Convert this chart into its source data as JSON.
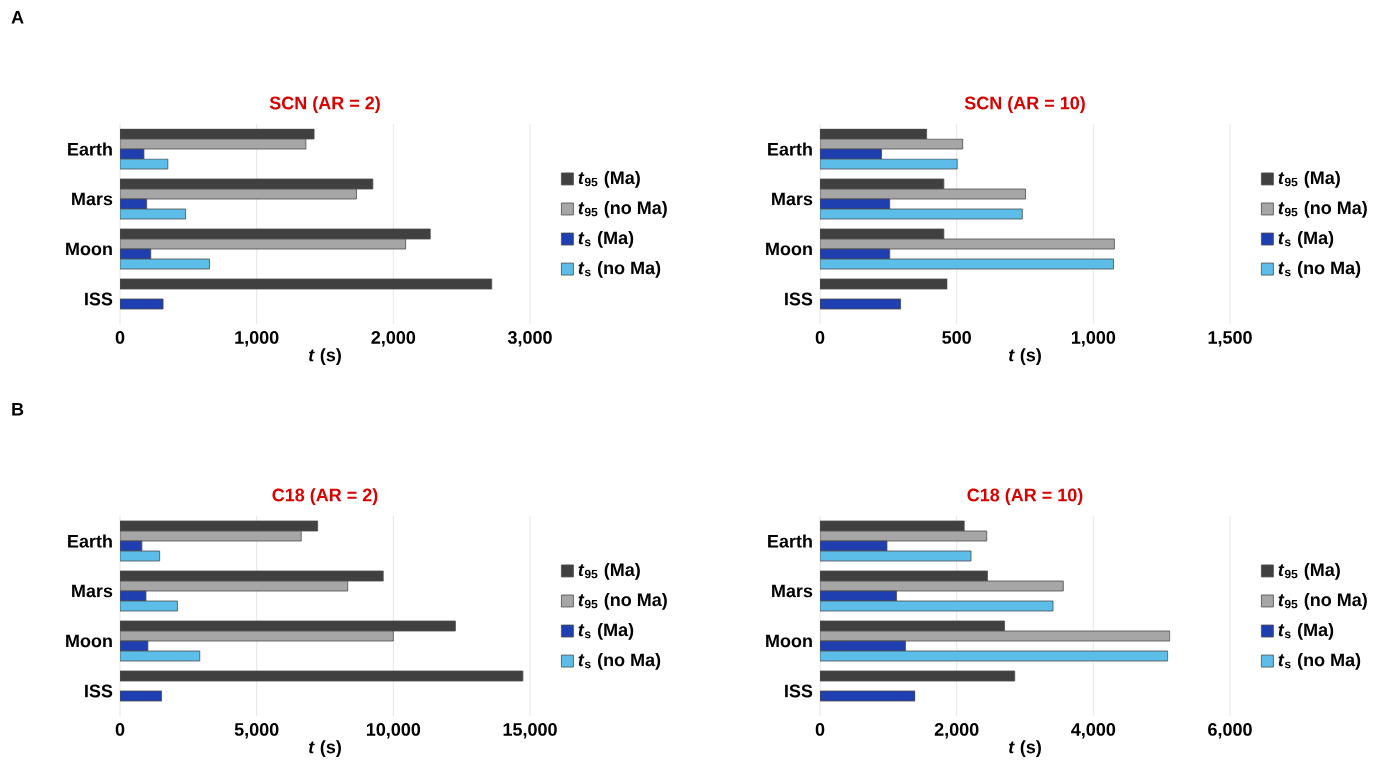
{
  "chart_data": [
    {
      "type": "bar",
      "orientation": "horizontal",
      "title": "SCN (AR = 2)",
      "xlabel": "*t* (s)",
      "annotations": [
        "A"
      ],
      "categories": [
        "Earth",
        "Mars",
        "Moon",
        "ISS"
      ],
      "xlim": [
        0,
        3000
      ],
      "xticks": [
        0,
        {
          "value": 1000,
          "label": "1,000"
        },
        {
          "value": 2000,
          "label": "2,000"
        },
        {
          "value": 3000,
          "label": "3,000"
        }
      ],
      "grid": "x",
      "legend": "right",
      "series": [
        {
          "name": "*t*$_{95}$ (Ma)",
          "color": "#404040",
          "values": [
            1420,
            1850,
            2270,
            2720
          ]
        },
        {
          "name": "*t*$_{95}$ (no Ma)",
          "color": "#a6a6a6",
          "values": [
            1360,
            1730,
            2090,
            null
          ]
        },
        {
          "name": "*t*$_{s}$ (Ma)",
          "color": "#1f3fb0",
          "values": [
            175,
            195,
            225,
            315
          ]
        },
        {
          "name": "*t*$_{s}$ (no Ma)",
          "color": "#5bbde8",
          "values": [
            350,
            480,
            655,
            null
          ]
        }
      ]
    },
    {
      "type": "bar",
      "orientation": "horizontal",
      "title": "SCN (AR = 10)",
      "xlabel": "*t* (s)",
      "categories": [
        "Earth",
        "Mars",
        "Moon",
        "ISS"
      ],
      "xlim": [
        0,
        1500
      ],
      "xticks": [
        0,
        500,
        {
          "value": 1000,
          "label": "1,000"
        },
        {
          "value": 1500,
          "label": "1,500"
        }
      ],
      "grid": "x",
      "legend": "right",
      "series": [
        {
          "name": "*t*$_{95}$ (Ma)",
          "color": "#404040",
          "values": [
            390,
            453,
            453,
            465
          ]
        },
        {
          "name": "*t*$_{95}$ (no Ma)",
          "color": "#a6a6a6",
          "values": [
            522,
            752,
            1077,
            null
          ]
        },
        {
          "name": "*t*$_{s}$ (Ma)",
          "color": "#1f3fb0",
          "values": [
            225,
            255,
            255,
            295
          ]
        },
        {
          "name": "*t*$_{s}$ (no Ma)",
          "color": "#5bbde8",
          "values": [
            502,
            740,
            1074,
            null
          ]
        }
      ]
    },
    {
      "type": "bar",
      "orientation": "horizontal",
      "title": "C18 (AR = 2)",
      "xlabel": "*t* (s)",
      "annotations": [
        "B"
      ],
      "categories": [
        "Earth",
        "Mars",
        "Moon",
        "ISS"
      ],
      "xlim": [
        0,
        15000
      ],
      "xticks": [
        0,
        {
          "value": 5000,
          "label": "5,000"
        },
        {
          "value": 10000,
          "label": "10,000"
        },
        {
          "value": 15000,
          "label": "15,000"
        }
      ],
      "grid": "x",
      "legend": "right",
      "series": [
        {
          "name": "*t*$_{95}$ (Ma)",
          "color": "#404040",
          "values": [
            7230,
            9630,
            12270,
            14740
          ]
        },
        {
          "name": "*t*$_{95}$ (no Ma)",
          "color": "#a6a6a6",
          "values": [
            6630,
            8330,
            10000,
            null
          ]
        },
        {
          "name": "*t*$_{s}$ (Ma)",
          "color": "#1f3fb0",
          "values": [
            800,
            950,
            1020,
            1520
          ]
        },
        {
          "name": "*t*$_{s}$ (no Ma)",
          "color": "#5bbde8",
          "values": [
            1450,
            2100,
            2920,
            null
          ]
        }
      ]
    },
    {
      "type": "bar",
      "orientation": "horizontal",
      "title": "C18 (AR = 10)",
      "xlabel": "*t* (s)",
      "categories": [
        "Earth",
        "Mars",
        "Moon",
        "ISS"
      ],
      "xlim": [
        0,
        6000
      ],
      "xticks": [
        0,
        {
          "value": 2000,
          "label": "2,000"
        },
        {
          "value": 4000,
          "label": "4,000"
        },
        {
          "value": 6000,
          "label": "6,000"
        }
      ],
      "grid": "x",
      "legend": "right",
      "series": [
        {
          "name": "*t*$_{95}$ (Ma)",
          "color": "#404040",
          "values": [
            2110,
            2450,
            2700,
            2850
          ]
        },
        {
          "name": "*t*$_{95}$ (no Ma)",
          "color": "#a6a6a6",
          "values": [
            2440,
            3560,
            5120,
            null
          ]
        },
        {
          "name": "*t*$_{s}$ (Ma)",
          "color": "#1f3fb0",
          "values": [
            980,
            1120,
            1250,
            1390
          ]
        },
        {
          "name": "*t*$_{s}$ (no Ma)",
          "color": "#5bbde8",
          "values": [
            2210,
            3410,
            5090,
            null
          ]
        }
      ]
    }
  ]
}
